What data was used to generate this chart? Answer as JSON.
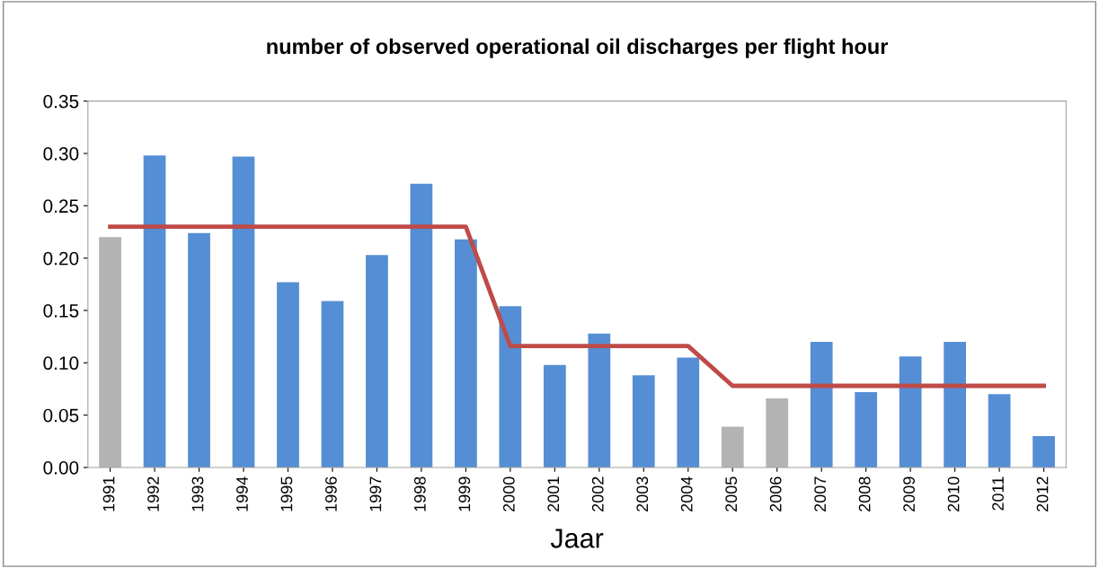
{
  "chart_data": {
    "type": "bar",
    "title": "number of observed operational oil discharges per flight hour",
    "xlabel": "Jaar",
    "categories": [
      "1991",
      "1992",
      "1993",
      "1994",
      "1995",
      "1996",
      "1997",
      "1998",
      "1999",
      "2000",
      "2001",
      "2002",
      "2003",
      "2004",
      "2005",
      "2006",
      "2007",
      "2008",
      "2009",
      "2010",
      "2011",
      "2012"
    ],
    "series": [
      {
        "colors": [
          "#b3b3b3",
          "#558ed5",
          "#558ed5",
          "#558ed5",
          "#558ed5",
          "#558ed5",
          "#558ed5",
          "#558ed5",
          "#558ed5",
          "#558ed5",
          "#558ed5",
          "#558ed5",
          "#558ed5",
          "#558ed5",
          "#b3b3b3",
          "#b3b3b3",
          "#558ed5",
          "#558ed5",
          "#558ed5",
          "#558ed5",
          "#558ed5",
          "#558ed5"
        ],
        "values": [
          0.22,
          0.298,
          0.224,
          0.297,
          0.177,
          0.159,
          0.203,
          0.271,
          0.218,
          0.154,
          0.098,
          0.128,
          0.088,
          0.105,
          0.039,
          0.066,
          0.12,
          0.072,
          0.106,
          0.12,
          0.07,
          0.03
        ]
      },
      {
        "type": "line",
        "color": "#be4b48",
        "values": [
          0.23,
          0.23,
          0.23,
          0.23,
          0.23,
          0.23,
          0.23,
          0.23,
          0.23,
          0.116,
          0.116,
          0.116,
          0.116,
          0.116,
          0.078,
          0.078,
          0.078,
          0.078,
          0.078,
          0.078,
          0.078,
          0.078
        ]
      }
    ],
    "ylim": [
      0,
      0.35
    ],
    "yticks": [
      {
        "value": 0,
        "label": "0.00"
      },
      {
        "value": 0.05,
        "label": "0.05"
      },
      {
        "value": 0.1,
        "label": "0.10"
      },
      {
        "value": 0.15,
        "label": "0.15"
      },
      {
        "value": 0.2,
        "label": "0.20"
      },
      {
        "value": 0.25,
        "label": "0.25"
      },
      {
        "value": 0.3,
        "label": "0.30"
      },
      {
        "value": 0.35,
        "label": "0.35"
      }
    ],
    "grid": false,
    "legend": false
  }
}
